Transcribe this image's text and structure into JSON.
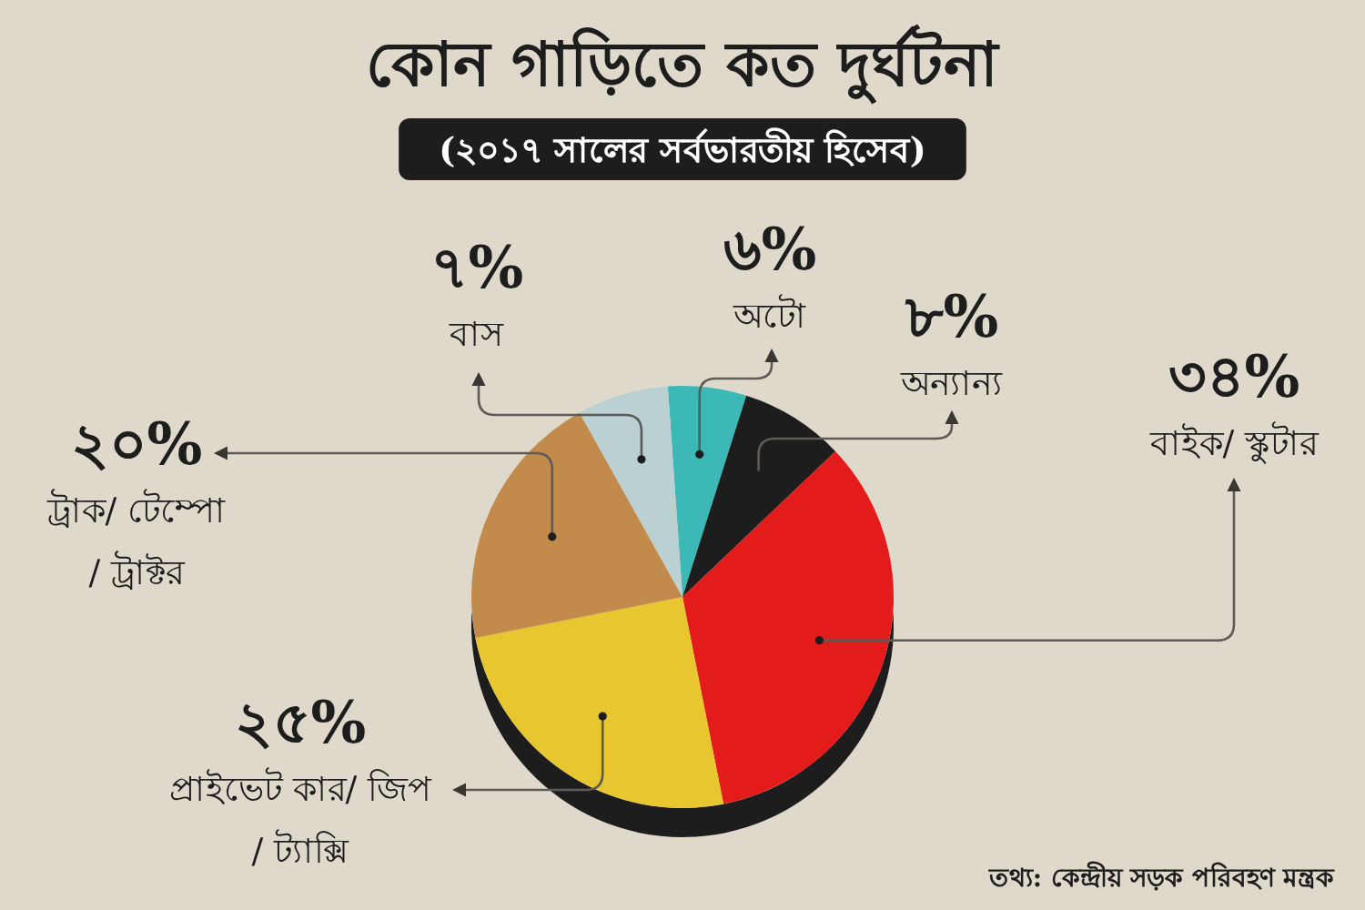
{
  "chart_data": {
    "type": "pie",
    "title": "কোন গাড়িতে কত দুর্ঘটনা",
    "subtitle": "(২০১৭ সালের সর্বভারতীয় হিসেব)",
    "categories": [
      "অটো",
      "অন্যান্য",
      "বাইক/ স্কুটার",
      "প্রাইভেট কার/ জিপ / ট্যাক্সি",
      "ট্রাক/ টেম্পো / ট্রাক্টর",
      "বাস"
    ],
    "values": [
      6,
      8,
      34,
      25,
      20,
      7
    ],
    "value_labels": [
      "৬%",
      "৮%",
      "৩৪%",
      "২৫%",
      "২০%",
      "৭%"
    ],
    "colors": [
      "#3cb9b7",
      "#1d1d1d",
      "#e31b1a",
      "#e7c630",
      "#c38b4b",
      "#bad0d3"
    ],
    "annotations": [
      "তথ্য: কেন্দ্রীয় সড়ক পরিবহণ মন্ত্রক"
    ]
  }
}
